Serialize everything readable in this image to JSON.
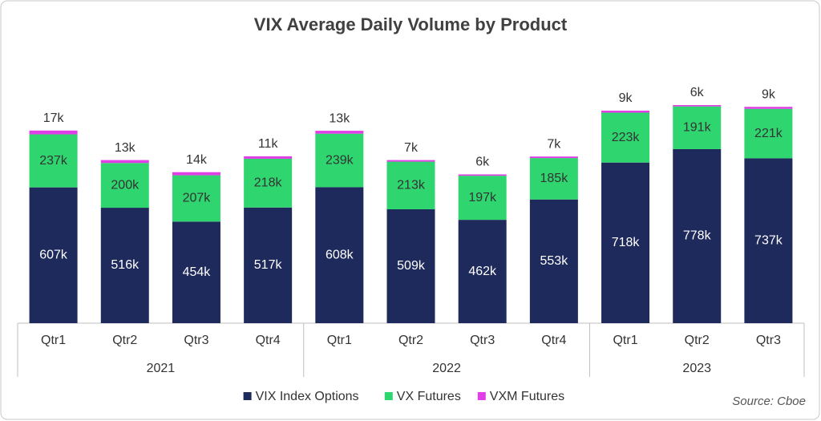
{
  "chart_data": {
    "type": "stacked_bar",
    "title": "VIX Average Daily Volume by Product",
    "groups": [
      {
        "name": "2021",
        "categories": [
          "Qtr1",
          "Qtr2",
          "Qtr3",
          "Qtr4"
        ]
      },
      {
        "name": "2022",
        "categories": [
          "Qtr1",
          "Qtr2",
          "Qtr3",
          "Qtr4"
        ]
      },
      {
        "name": "2023",
        "categories": [
          "Qtr1",
          "Qtr2",
          "Qtr3"
        ]
      }
    ],
    "series": [
      {
        "name": "VIX Index Options",
        "color": "#1f2a5c",
        "values": [
          607,
          516,
          454,
          517,
          608,
          509,
          462,
          553,
          718,
          778,
          737
        ],
        "value_labels": [
          "607k",
          "516k",
          "454k",
          "517k",
          "608k",
          "509k",
          "462k",
          "553k",
          "718k",
          "778k",
          "737k"
        ]
      },
      {
        "name": "VX Futures",
        "color": "#2fd66f",
        "values": [
          237,
          200,
          207,
          218,
          239,
          213,
          197,
          185,
          223,
          191,
          221
        ],
        "value_labels": [
          "237k",
          "200k",
          "207k",
          "218k",
          "239k",
          "213k",
          "197k",
          "185k",
          "223k",
          "191k",
          "221k"
        ]
      },
      {
        "name": "VXM Futures",
        "color": "#e03ee6",
        "values": [
          17,
          13,
          14,
          11,
          13,
          7,
          6,
          7,
          9,
          6,
          9
        ],
        "value_labels": [
          "17k",
          "13k",
          "14k",
          "11k",
          "13k",
          "7k",
          "6k",
          "7k",
          "9k",
          "6k",
          "9k"
        ]
      }
    ],
    "legend": "bottom",
    "source": "Source: Cboe"
  }
}
